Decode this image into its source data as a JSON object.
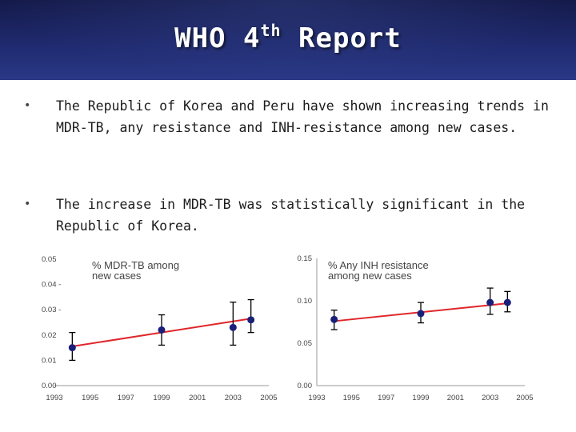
{
  "slide": {
    "title_main": "WHO 4",
    "title_sup": "th",
    "title_rest": " Report",
    "bullets": [
      "The Republic of Korea and Peru have shown increasing trends in MDR-TB, any resistance and INH-resistance among new cases.",
      "The increase in MDR-TB was statistically significant in the Republic of Korea."
    ],
    "bullet_symbol": "•"
  },
  "colors": {
    "header_bg": "#1f2a6e",
    "trend_line": "#e0262a",
    "point": "#1a1f7a",
    "error_bar": "#000000"
  },
  "chart_data": [
    {
      "type": "scatter",
      "title": "% MDR-TB among new cases",
      "title_lines": [
        "% MDR-TB among",
        "new cases"
      ],
      "x_ticks": [
        "1993",
        "1995",
        "1997",
        "1999",
        "2001",
        "2003",
        "2005"
      ],
      "y_ticks": [
        "0.00",
        "0.01",
        "0.02",
        "0.03 -",
        "0.04 -",
        "0.05"
      ],
      "xlim": [
        1993,
        2005
      ],
      "ylim": [
        0,
        0.05
      ],
      "points": [
        {
          "x": 1994,
          "y": 0.015,
          "lo": 0.01,
          "hi": 0.021
        },
        {
          "x": 1999,
          "y": 0.022,
          "lo": 0.016,
          "hi": 0.028
        },
        {
          "x": 2003,
          "y": 0.023,
          "lo": 0.016,
          "hi": 0.033
        },
        {
          "x": 2004,
          "y": 0.026,
          "lo": 0.021,
          "hi": 0.034
        }
      ],
      "trend": [
        {
          "x": 1994,
          "y": 0.0155
        },
        {
          "x": 2004,
          "y": 0.0265
        }
      ]
    },
    {
      "type": "scatter",
      "title": "% Any INH resistance among new cases",
      "title_lines": [
        "% Any INH resistance",
        "among new cases"
      ],
      "x_ticks": [
        "1993",
        "1995",
        "1997",
        "1999",
        "2001",
        "2003",
        "2005"
      ],
      "y_ticks": [
        "0.00",
        "0.05",
        "0.10",
        "0.15"
      ],
      "xlim": [
        1993,
        2005
      ],
      "ylim": [
        0,
        0.15
      ],
      "points": [
        {
          "x": 1994,
          "y": 0.078,
          "lo": 0.066,
          "hi": 0.089
        },
        {
          "x": 1999,
          "y": 0.085,
          "lo": 0.074,
          "hi": 0.098
        },
        {
          "x": 2003,
          "y": 0.098,
          "lo": 0.084,
          "hi": 0.115
        },
        {
          "x": 2004,
          "y": 0.098,
          "lo": 0.087,
          "hi": 0.111
        }
      ],
      "trend": [
        {
          "x": 1994,
          "y": 0.076
        },
        {
          "x": 2004,
          "y": 0.097
        }
      ]
    }
  ]
}
